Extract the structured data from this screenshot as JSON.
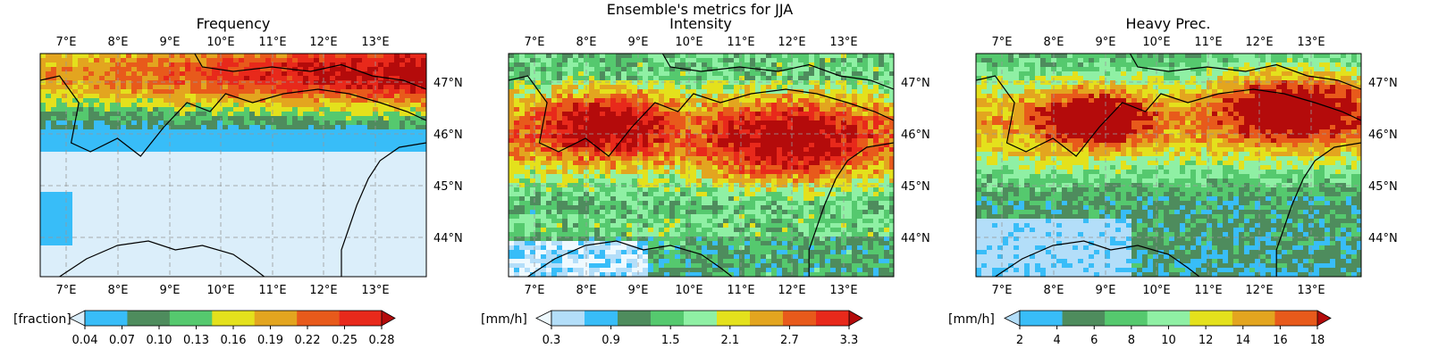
{
  "figure": {
    "suptitle": "Ensemble's metrics for JJA"
  },
  "panels": [
    {
      "title": "Frequency",
      "cbar_label": "[fraction]",
      "cbar_ticks": [
        "0.04",
        "0.07",
        "0.10",
        "0.13",
        "0.16",
        "0.19",
        "0.22",
        "0.25",
        "0.28"
      ],
      "palette": [
        "#dbeefa",
        "#38bdf8",
        "#4e8c5d",
        "#55c96e",
        "#e4e11c",
        "#e3a51f",
        "#e85a1b",
        "#e8291b",
        "#b40b0b"
      ],
      "grid_lines": true
    },
    {
      "title": "Intensity",
      "cbar_label": "[mm/h]",
      "cbar_ticks": [
        "0.3",
        "0.9",
        "1.5",
        "2.1",
        "2.7",
        "3.3"
      ],
      "palette": [
        "#eef9fe",
        "#b3def9",
        "#38bdf8",
        "#4e8c5d",
        "#55c96e",
        "#8ff0a4",
        "#e4e11c",
        "#e3a51f",
        "#e85a1b",
        "#e8291b",
        "#b40b0b"
      ],
      "grid_lines": true
    },
    {
      "title": "Heavy Prec.",
      "cbar_label": "[mm/h]",
      "cbar_ticks": [
        "2",
        "4",
        "6",
        "8",
        "10",
        "12",
        "14",
        "16",
        "18"
      ],
      "palette": [
        "#b3def9",
        "#38bdf8",
        "#4e8c5d",
        "#55c96e",
        "#8ff0a4",
        "#e4e11c",
        "#e3a51f",
        "#e85a1b",
        "#b40b0b"
      ],
      "grid_lines": true
    }
  ],
  "map": {
    "lon_ticks": [
      "7°E",
      "8°E",
      "9°E",
      "10°E",
      "11°E",
      "12°E",
      "13°E"
    ],
    "lat_ticks": [
      "47°N",
      "46°N",
      "45°N",
      "44°N"
    ],
    "lon_range": [
      6.5,
      14.0
    ],
    "lat_range": [
      43.3,
      47.6
    ]
  }
}
